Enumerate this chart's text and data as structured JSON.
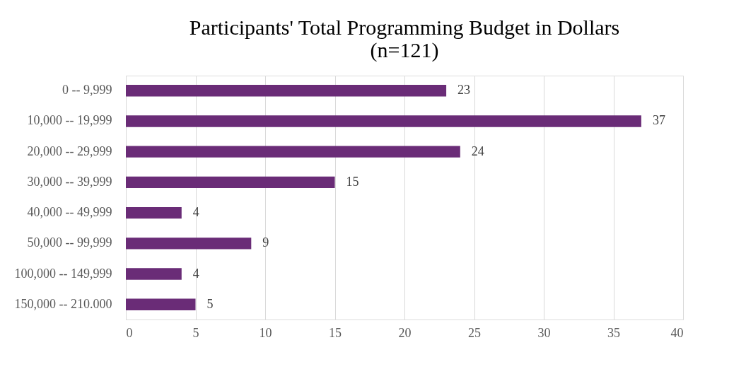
{
  "chart_data": {
    "type": "bar",
    "orientation": "horizontal",
    "title": "Participants' Total Programming Budget in Dollars\n(n=121)",
    "categories": [
      "0 -- 9,999",
      "10,000 -- 19,999",
      "20,000 -- 29,999",
      "30,000 -- 39,999",
      "40,000 -- 49,999",
      "50,000 -- 99,999",
      "100,000 -- 149,999",
      "150,000 -- 210.000"
    ],
    "values": [
      23,
      37,
      24,
      15,
      4,
      9,
      4,
      5
    ],
    "color": "#6a2c77",
    "xlim": [
      0,
      40
    ],
    "xticks": [
      0,
      5,
      10,
      15,
      20,
      25,
      30,
      35,
      40
    ],
    "grid": "x",
    "data_labels": true
  }
}
